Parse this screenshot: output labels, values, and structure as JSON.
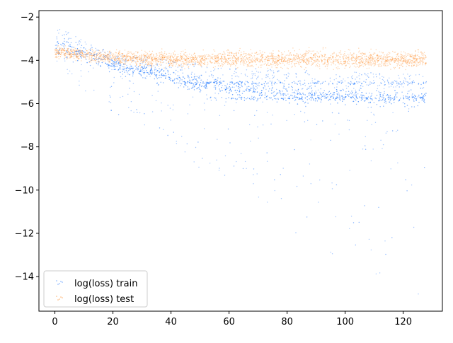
{
  "chart_data": {
    "type": "scatter",
    "title": "",
    "xlabel": "",
    "ylabel": "",
    "xlim": [
      -5.5,
      133.5
    ],
    "ylim": [
      -15.6,
      -1.7
    ],
    "xticks": [
      0,
      20,
      40,
      60,
      80,
      100,
      120
    ],
    "yticks": [
      -14,
      -12,
      -10,
      -8,
      -6,
      -4,
      -2
    ],
    "xtick_labels": [
      "0",
      "20",
      "40",
      "60",
      "80",
      "100",
      "120"
    ],
    "ytick_labels": [
      "−14",
      "−12",
      "−10",
      "−8",
      "−6",
      "−4",
      "−2"
    ],
    "grid": false,
    "legend_position": "lower-left",
    "series": [
      {
        "name": "log(loss) train",
        "color": "#1f77ff",
        "x_range": [
          0,
          128
        ],
        "description_points": [
          {
            "x": 0,
            "y_center": -3.3,
            "y_spread_low": -4.2,
            "y_spread_high": -2.3
          },
          {
            "x": 20,
            "y_center": -4.2,
            "y_spread_low": -6.5,
            "y_spread_high": -3.6
          },
          {
            "x": 40,
            "y_center": -4.8,
            "y_spread_low": -8.0,
            "y_spread_high": -3.9
          },
          {
            "x": 60,
            "y_center": -5.3,
            "y_spread_low": -10.0,
            "y_spread_high": -4.2
          },
          {
            "x": 80,
            "y_center": -5.6,
            "y_spread_low": -12.0,
            "y_spread_high": -4.3
          },
          {
            "x": 100,
            "y_center": -5.7,
            "y_spread_low": -13.5,
            "y_spread_high": -4.4
          },
          {
            "x": 128,
            "y_center": -5.75,
            "y_spread_low": -15.0,
            "y_spread_high": -4.5
          }
        ],
        "bands": [
          -5.05,
          -5.75
        ]
      },
      {
        "name": "log(loss) test",
        "color": "#ff7f0e",
        "x_range": [
          0,
          128
        ],
        "description_points": [
          {
            "x": 0,
            "y_center": -3.6,
            "y_spread_low": -4.1,
            "y_spread_high": -3.1
          },
          {
            "x": 20,
            "y_center": -3.9,
            "y_spread_low": -4.5,
            "y_spread_high": -3.3
          },
          {
            "x": 40,
            "y_center": -3.95,
            "y_spread_low": -4.6,
            "y_spread_high": -3.3
          },
          {
            "x": 80,
            "y_center": -3.95,
            "y_spread_low": -4.7,
            "y_spread_high": -3.2
          },
          {
            "x": 128,
            "y_center": -3.95,
            "y_spread_low": -4.7,
            "y_spread_high": -3.2
          }
        ]
      }
    ]
  }
}
